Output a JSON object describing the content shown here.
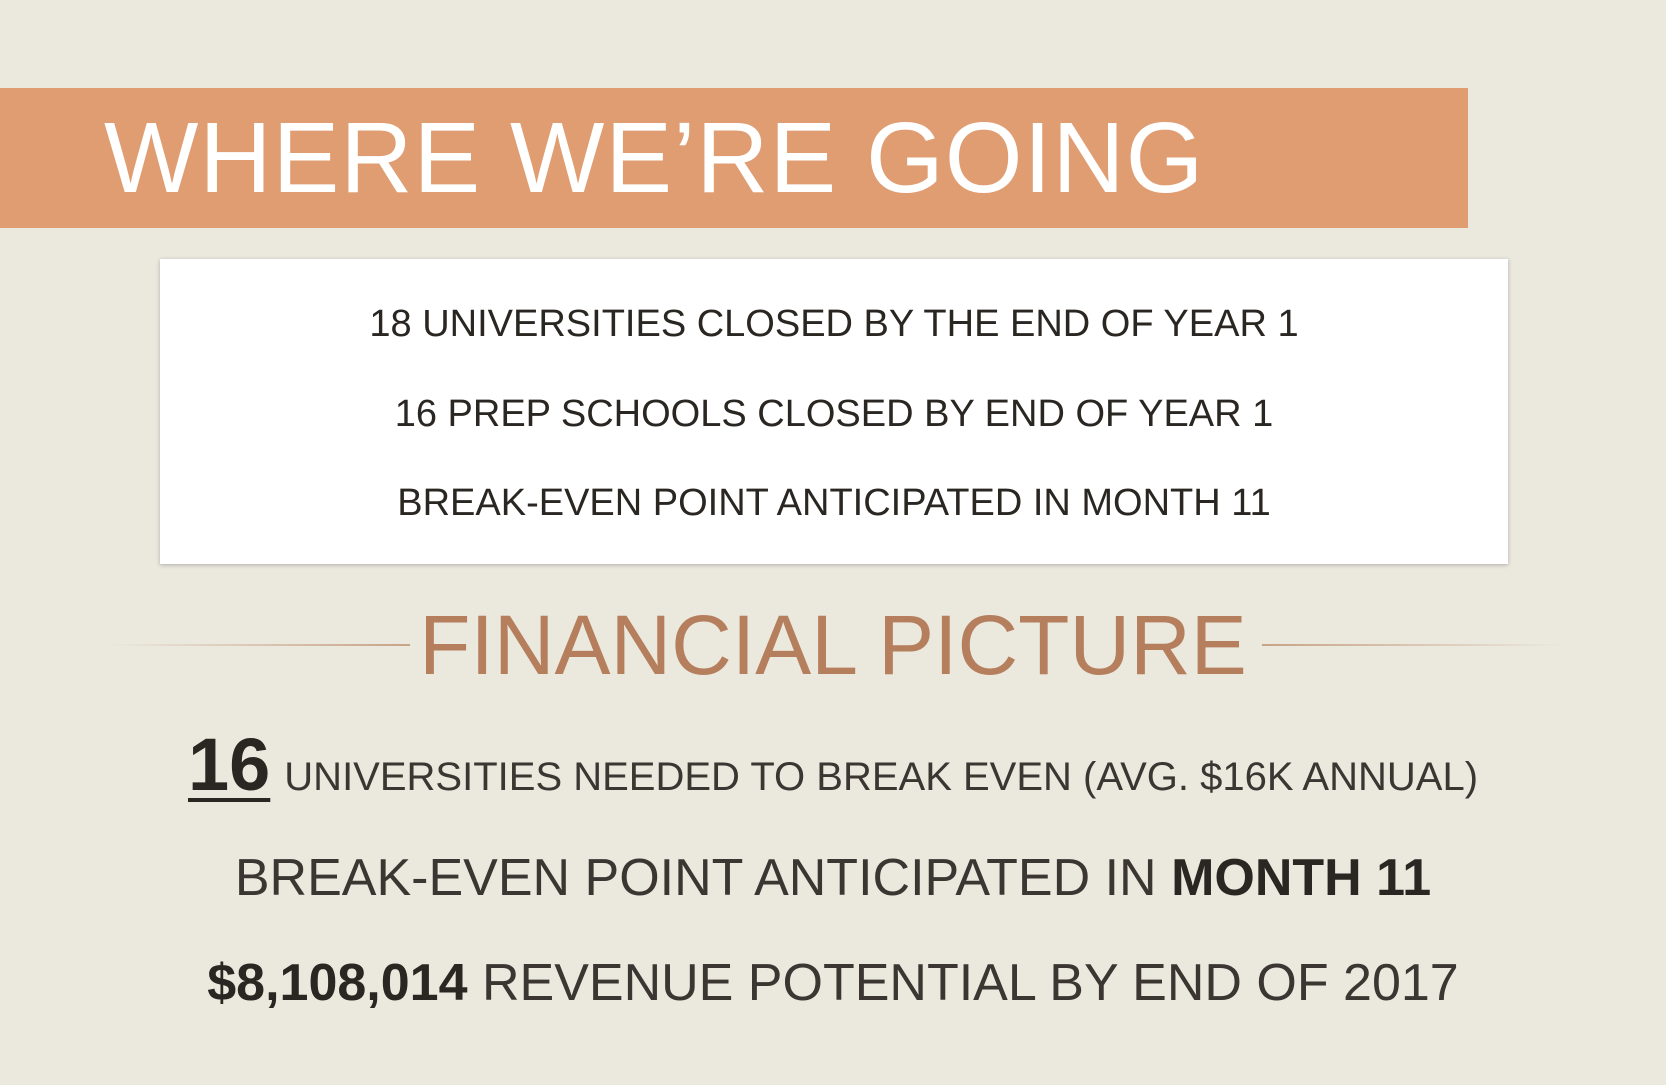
{
  "banner": {
    "title": "WHERE WE’RE GOING",
    "color": "#e09d71"
  },
  "goals": [
    "18 UNIVERSITIES CLOSED BY THE END OF YEAR 1",
    "16 PREP SCHOOLS CLOSED BY END OF YEAR 1",
    "BREAK-EVEN POINT ANTICIPATED IN MONTH 11"
  ],
  "financial": {
    "heading": "FINANCIAL PICTURE",
    "heading_color": "#b57e5c",
    "universities_number": "16",
    "universities_text": "UNIVERSITIES NEEDED TO BREAK EVEN",
    "universities_note": "(AVG. $16K ANNUAL)",
    "breakeven_text": "BREAK-EVEN POINT ANTICIPATED IN",
    "breakeven_month": "MONTH 11",
    "revenue_amount": "$8,108,014",
    "revenue_text": "REVENUE POTENTIAL BY END OF 2017"
  }
}
